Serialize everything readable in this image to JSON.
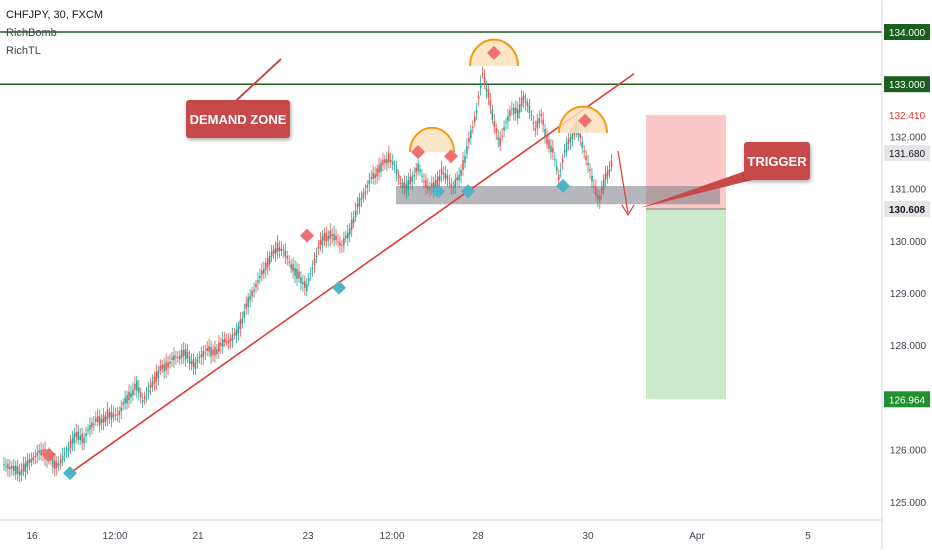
{
  "header": {
    "symbol_line": "CHFJPY, 30, FXCM",
    "indicator1": "RichBomb",
    "indicator2": "RichTL"
  },
  "annotations": {
    "demand_zone": "DEMAND ZONE",
    "trigger": "TRIGGER"
  },
  "colors": {
    "resistance_line": "#1b5e20",
    "trendline": "#e53935",
    "candle_up": "#26a69a",
    "candle_down": "#ef5350",
    "zone": "#787b86",
    "stop_area": "#f8b6b6",
    "target_area": "#b9e3b9",
    "callout": "#c8494a",
    "marker_red": "#ef7070",
    "marker_blue": "#4fb3c8",
    "arc": "#f39c12"
  },
  "chart_data": {
    "type": "candlestick",
    "symbol": "CHFJPY",
    "timeframe": "30",
    "source": "FXCM",
    "ylim": [
      124.6,
      134.4
    ],
    "price_ticks": [
      125.0,
      126.0,
      127.0,
      128.0,
      129.0,
      130.0,
      131.0,
      132.0
    ],
    "price_tick_labels": [
      "125.000",
      "126.000",
      "127.000",
      "128.000",
      "129.000",
      "130.000",
      "131.000",
      "132.000"
    ],
    "x_ticks": [
      "16",
      "12:00",
      "21",
      "23",
      "12:00",
      "28",
      "30",
      "Apr",
      "5"
    ],
    "horizontal_levels": [
      {
        "value": 134.0,
        "label": "134.000"
      },
      {
        "value": 133.0,
        "label": "133.000"
      }
    ],
    "price_badges": [
      {
        "value": 132.41,
        "label": "132.410",
        "kind": "stop"
      },
      {
        "value": 131.68,
        "label": "131.680",
        "kind": "last"
      },
      {
        "value": 130.608,
        "label": "130.608",
        "kind": "entry"
      },
      {
        "value": 126.964,
        "label": "126.964",
        "kind": "target"
      }
    ],
    "neckline_zone": [
      130.7,
      131.05
    ],
    "trade": {
      "entry": 130.608,
      "stop": 132.41,
      "target": 126.964
    },
    "close_path": [
      125.7,
      125.62,
      125.58,
      125.66,
      125.82,
      125.9,
      125.96,
      125.84,
      125.7,
      125.76,
      125.96,
      126.18,
      126.28,
      126.2,
      126.42,
      126.58,
      126.52,
      126.68,
      126.62,
      126.72,
      126.92,
      127.08,
      127.22,
      126.96,
      127.1,
      127.34,
      127.52,
      127.6,
      127.72,
      127.78,
      127.86,
      127.74,
      127.62,
      127.8,
      127.92,
      127.84,
      127.96,
      128.06,
      128.12,
      128.22,
      128.5,
      128.82,
      129.08,
      129.28,
      129.52,
      129.7,
      129.88,
      129.8,
      129.62,
      129.4,
      129.28,
      129.1,
      129.48,
      129.86,
      130.06,
      130.1,
      130.04,
      129.92,
      130.1,
      130.42,
      130.74,
      130.96,
      131.18,
      131.32,
      131.46,
      131.6,
      131.42,
      131.14,
      131.0,
      131.22,
      131.4,
      131.16,
      130.98,
      131.08,
      131.3,
      131.2,
      131.02,
      131.22,
      131.58,
      132.05,
      132.5,
      133.18,
      132.82,
      132.2,
      131.9,
      132.24,
      132.56,
      132.42,
      132.78,
      132.5,
      132.16,
      132.38,
      131.94,
      131.7,
      131.22,
      131.7,
      131.96,
      132.2,
      131.86,
      131.48,
      131.02,
      130.8,
      131.2,
      131.48,
      131.68
    ],
    "trendline": {
      "from": [
        "16",
        125.55
      ],
      "to": [
        "30",
        133.2
      ]
    },
    "top_markers": [
      125.9,
      130.1,
      131.7,
      131.62,
      133.6,
      132.3
    ],
    "bottom_markers": [
      125.55,
      129.1,
      130.95,
      130.95,
      131.05
    ]
  }
}
